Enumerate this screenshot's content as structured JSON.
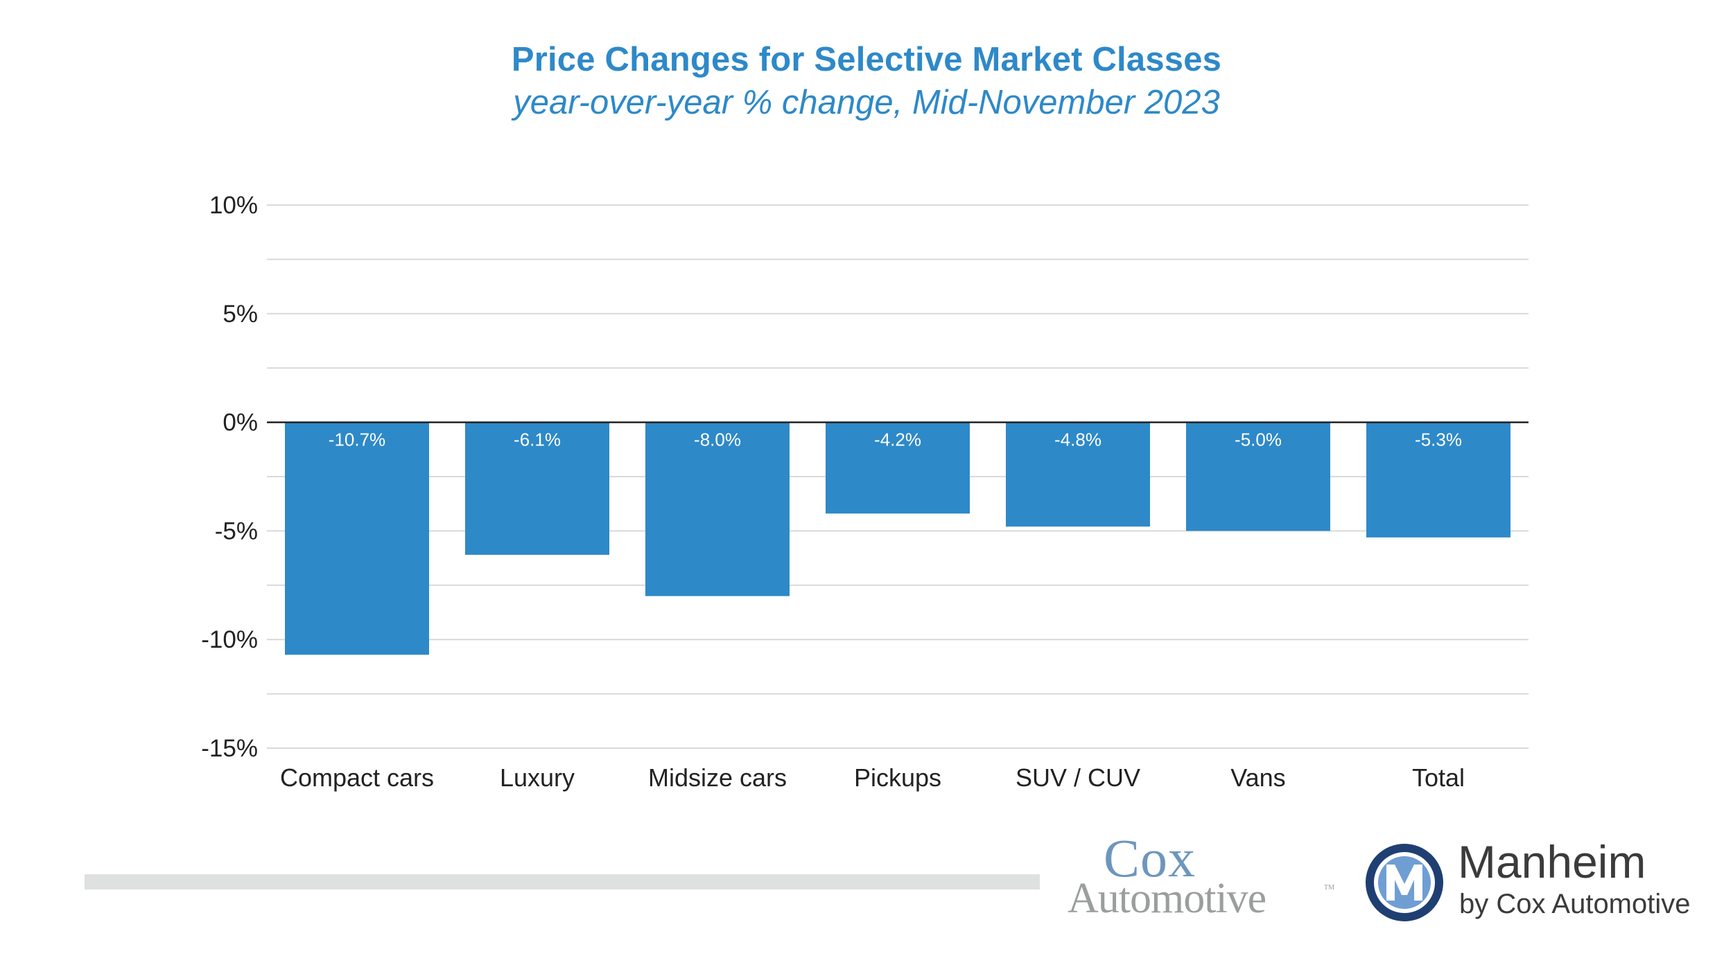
{
  "chart_data": {
    "type": "bar",
    "title": "Price Changes for Selective Market Classes",
    "subtitle": "year-over-year % change, Mid-November 2023",
    "categories": [
      "Compact cars",
      "Luxury",
      "Midsize cars",
      "Pickups",
      "SUV / CUV",
      "Vans",
      "Total"
    ],
    "values": [
      -10.7,
      -6.1,
      -8.0,
      -4.2,
      -4.8,
      -5.0,
      -5.3
    ],
    "data_labels": [
      "-10.7%",
      "-6.1%",
      "-8.0%",
      "-4.2%",
      "-4.8%",
      "-5.0%",
      "-5.3%"
    ],
    "ylim": [
      -15,
      10
    ],
    "yticks": [
      10,
      5,
      0,
      -5,
      -10,
      -15
    ],
    "ytick_labels": [
      "10%",
      "5%",
      "0%",
      "-5%",
      "-10%",
      "-15%"
    ],
    "minor_gridlines": [
      7.5,
      2.5,
      -2.5,
      -7.5,
      -12.5
    ],
    "grid": true,
    "bar_color": "#2e89c8",
    "title_color": "#2e89c8"
  },
  "logos": {
    "cox_word": "Cox",
    "cox_auto": "Automotive",
    "cox_tm": "TM",
    "manheim_name": "Manheim",
    "manheim_sub": "by Cox Automotive"
  }
}
